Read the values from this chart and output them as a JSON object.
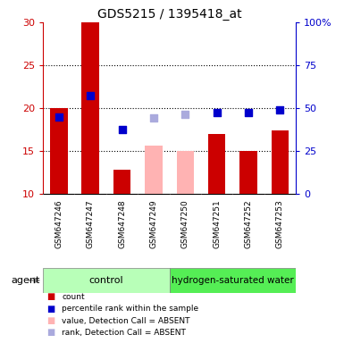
{
  "title": "GDS5215 / 1395418_at",
  "samples": [
    "GSM647246",
    "GSM647247",
    "GSM647248",
    "GSM647249",
    "GSM647250",
    "GSM647251",
    "GSM647252",
    "GSM647253"
  ],
  "groups": {
    "control": [
      0,
      1,
      2,
      3
    ],
    "hydrogen-saturated water": [
      4,
      5,
      6,
      7
    ]
  },
  "bar_values": [
    20,
    30,
    12.8,
    null,
    null,
    17,
    15,
    17.4
  ],
  "bar_colors": [
    "#cc0000",
    "#cc0000",
    "#cc0000",
    null,
    null,
    "#cc0000",
    "#cc0000",
    "#cc0000"
  ],
  "absent_bar_values": [
    null,
    null,
    null,
    15.6,
    15.0,
    null,
    null,
    null
  ],
  "absent_bar_color": "#ffb3b3",
  "rank_dots_left": [
    19.0,
    21.5,
    17.5,
    null,
    null,
    19.5,
    19.5,
    19.8
  ],
  "rank_dot_color": "#0000cc",
  "absent_rank_dots_left": [
    null,
    null,
    null,
    18.8,
    19.3,
    null,
    null,
    null
  ],
  "absent_rank_dot_color": "#aaaadd",
  "ylim_left": [
    10,
    30
  ],
  "ylim_right": [
    0,
    100
  ],
  "yticks_left": [
    10,
    15,
    20,
    25,
    30
  ],
  "ytick_labels_left": [
    "10",
    "15",
    "20",
    "25",
    "30"
  ],
  "yticks_right": [
    0,
    25,
    50,
    75,
    100
  ],
  "ytick_labels_right": [
    "0",
    "25",
    "50",
    "75",
    "100%"
  ],
  "left_axis_color": "#cc0000",
  "right_axis_color": "#0000cc",
  "group_color_control": "#b8ffb8",
  "group_color_h2": "#55ee55",
  "bar_width": 0.55,
  "dot_size": 28,
  "grid_ticks": [
    15,
    20,
    25
  ],
  "legend_items": [
    {
      "color": "#cc0000",
      "label": "count"
    },
    {
      "color": "#0000cc",
      "label": "percentile rank within the sample"
    },
    {
      "color": "#ffb3b3",
      "label": "value, Detection Call = ABSENT"
    },
    {
      "color": "#aaaadd",
      "label": "rank, Detection Call = ABSENT"
    }
  ]
}
